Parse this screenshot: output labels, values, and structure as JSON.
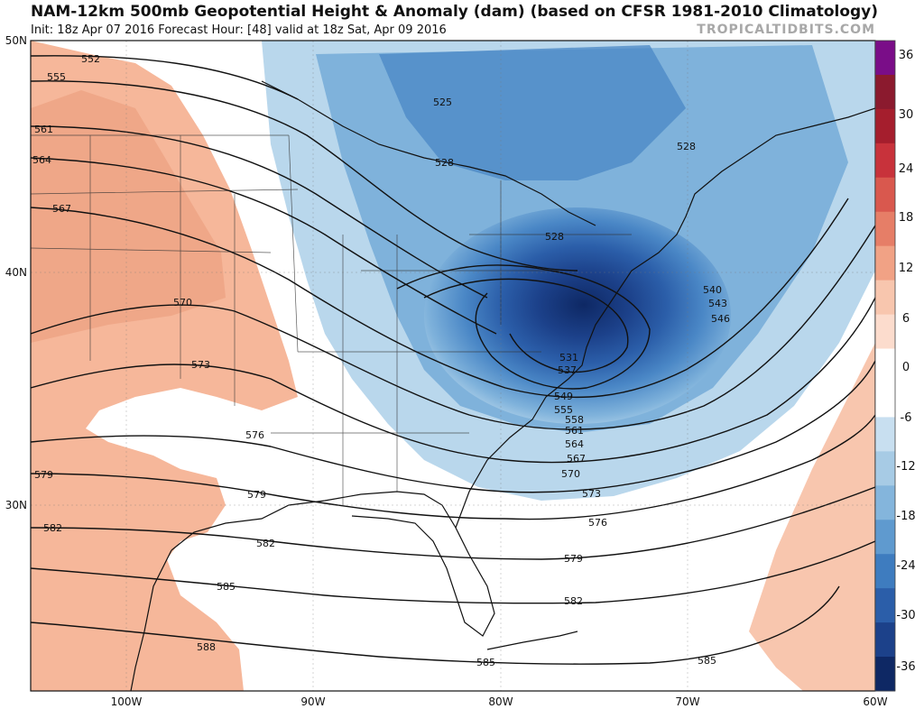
{
  "header": {
    "title": "NAM-12km 500mb Geopotential Height & Anomaly (dam) (based on CFSR 1981-2010 Climatology)",
    "subtitle": "Init: 18z Apr 07 2016   Forecast Hour: [48]   valid at 18z Sat, Apr 09 2016",
    "brand": "TROPICALTIDBITS.COM"
  },
  "map": {
    "lat_labels": [
      "50N",
      "40N",
      "30N"
    ],
    "lon_labels": [
      "100W",
      "90W",
      "80W",
      "70W",
      "60W"
    ],
    "contour_labels": [
      "552",
      "555",
      "561",
      "564",
      "567",
      "570",
      "573",
      "576",
      "579",
      "582",
      "585",
      "588",
      "525",
      "528",
      "528",
      "528",
      "540",
      "543",
      "546",
      "549",
      "555",
      "558",
      "561",
      "564",
      "567",
      "570",
      "573",
      "576",
      "579",
      "582",
      "585",
      "531",
      "537"
    ],
    "colors": {
      "positive_anomaly": "#f6b79a",
      "negative_anomaly_light": "#a8cde6",
      "negative_anomaly_mid": "#3f82c2",
      "negative_anomaly_deep": "#0f2f70",
      "land_outline": "#111111"
    }
  },
  "colorbar": {
    "labels": [
      "36",
      "30",
      "24",
      "18",
      "12",
      "6",
      "0",
      "-6",
      "-12",
      "-18",
      "-24",
      "-30",
      "-36"
    ],
    "colors": [
      "#7a0d88",
      "#8b1a2e",
      "#a51e2d",
      "#c8323b",
      "#d9584e",
      "#e67e67",
      "#f1a285",
      "#f8c6ae",
      "#fcdccd",
      "#ffffff",
      "#ffffff",
      "#c8dff0",
      "#a7cbe5",
      "#84b5dc",
      "#5f9acf",
      "#3e7cbf",
      "#2b5ea9",
      "#1c418a",
      "#0e2864"
    ]
  }
}
